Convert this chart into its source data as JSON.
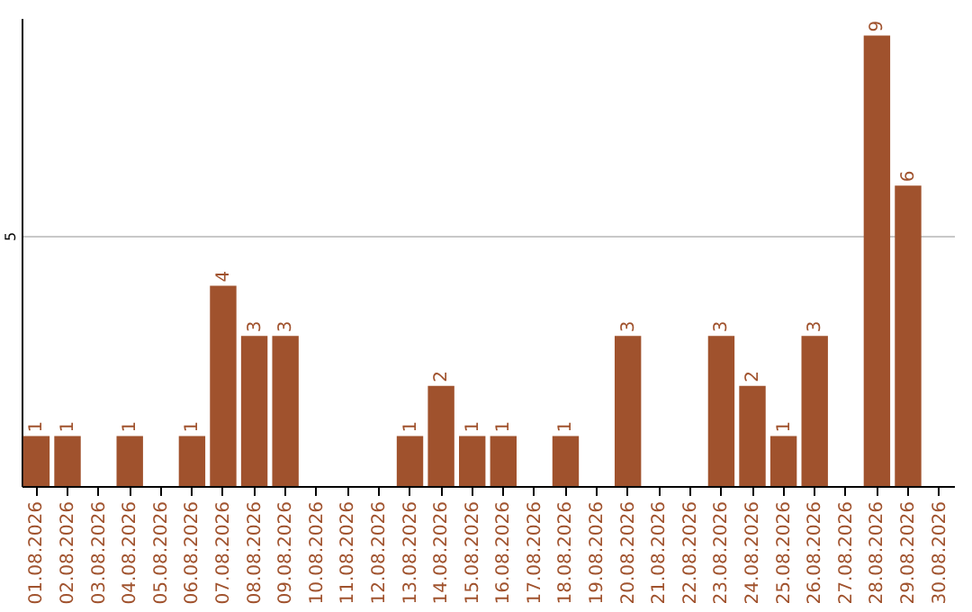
{
  "chart_data": {
    "type": "bar",
    "categories": [
      "01.08.2026",
      "02.08.2026",
      "03.08.2026",
      "04.08.2026",
      "05.08.2026",
      "06.08.2026",
      "07.08.2026",
      "08.08.2026",
      "09.08.2026",
      "10.08.2026",
      "11.08.2026",
      "12.08.2026",
      "13.08.2026",
      "14.08.2026",
      "15.08.2026",
      "16.08.2026",
      "17.08.2026",
      "18.08.2026",
      "19.08.2026",
      "20.08.2026",
      "21.08.2026",
      "22.08.2026",
      "23.08.2026",
      "24.08.2026",
      "25.08.2026",
      "26.08.2026",
      "27.08.2026",
      "28.08.2026",
      "29.08.2026",
      "30.08.2026"
    ],
    "values": [
      1,
      1,
      0,
      1,
      0,
      1,
      4,
      3,
      3,
      0,
      0,
      0,
      1,
      2,
      1,
      1,
      0,
      1,
      0,
      3,
      0,
      0,
      3,
      2,
      1,
      3,
      0,
      9,
      6,
      0
    ],
    "value_labels": [
      "1",
      "1",
      null,
      "1",
      null,
      "1",
      "4",
      "3",
      "3",
      null,
      null,
      null,
      "1",
      "2",
      "1",
      "1",
      null,
      "1",
      null,
      "3",
      null,
      null,
      "3",
      "2",
      "1",
      "3",
      null,
      "9",
      "6",
      null
    ],
    "color": "#a0522d",
    "ylim": [
      0,
      9.35
    ],
    "yticks": [
      5
    ],
    "grid": "y"
  }
}
